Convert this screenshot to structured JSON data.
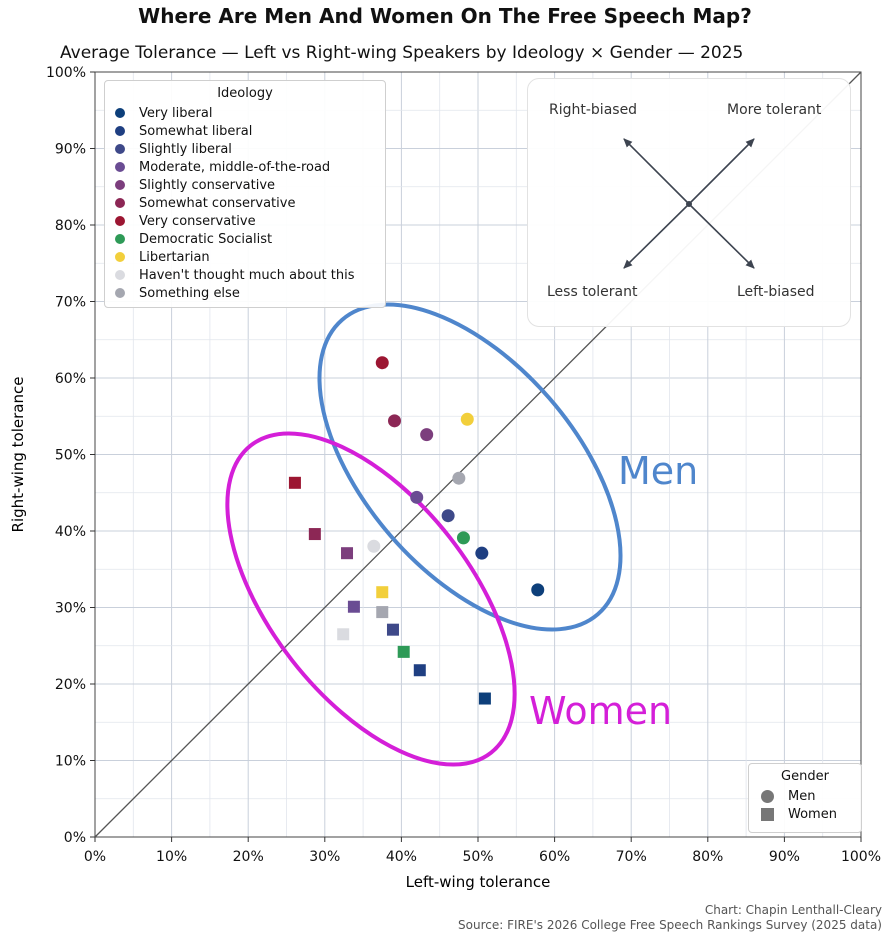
{
  "title": "Where Are Men And Women On The Free Speech Map?",
  "subtitle": "Average Tolerance — Left vs Right-wing Speakers by Ideology × Gender — 2025",
  "credit": {
    "line1": "Chart: Chapin Lenthall-Cleary",
    "line2": "Source: FIRE's 2026 College Free Speech Rankings Survey (2025 data)"
  },
  "chart_data": {
    "type": "scatter",
    "xlabel": "Left-wing tolerance",
    "ylabel": "Right-wing tolerance",
    "xlim": [
      0,
      100
    ],
    "ylim": [
      0,
      100
    ],
    "x_ticks": [
      "0%",
      "10%",
      "20%",
      "30%",
      "40%",
      "50%",
      "60%",
      "70%",
      "80%",
      "90%",
      "100%"
    ],
    "y_ticks": [
      "0%",
      "10%",
      "20%",
      "30%",
      "40%",
      "50%",
      "60%",
      "70%",
      "80%",
      "90%",
      "100%"
    ],
    "grid": true,
    "diagonal_line": true,
    "ideology_legend_title": "Ideology",
    "ideology_legend_placement": "top-left",
    "ideologies": [
      {
        "name": "Very liberal",
        "color": "#0d3f7a"
      },
      {
        "name": "Somewhat liberal",
        "color": "#1f3f82"
      },
      {
        "name": "Slightly liberal",
        "color": "#3e4989"
      },
      {
        "name": "Moderate, middle-of-the-road",
        "color": "#6a4c93"
      },
      {
        "name": "Slightly conservative",
        "color": "#7c3e7d"
      },
      {
        "name": "Somewhat conservative",
        "color": "#8c2755"
      },
      {
        "name": "Very conservative",
        "color": "#9c1632"
      },
      {
        "name": "Democratic Socialist",
        "color": "#2e9a57"
      },
      {
        "name": "Libertarian",
        "color": "#f2cf3b"
      },
      {
        "name": "Haven't thought much about this",
        "color": "#dadbe0"
      },
      {
        "name": "Something else",
        "color": "#a5a7b0"
      }
    ],
    "gender_legend_title": "Gender",
    "gender_legend_placement": "bottom-right",
    "genders": [
      {
        "name": "Men",
        "marker": "circle"
      },
      {
        "name": "Women",
        "marker": "square"
      }
    ],
    "series": [
      {
        "gender": "Men",
        "points": [
          {
            "ideology": "Very liberal",
            "x": 57.8,
            "y": 32.3
          },
          {
            "ideology": "Somewhat liberal",
            "x": 50.5,
            "y": 37.1
          },
          {
            "ideology": "Slightly liberal",
            "x": 46.1,
            "y": 42.0
          },
          {
            "ideology": "Moderate, middle-of-the-road",
            "x": 42.0,
            "y": 44.4
          },
          {
            "ideology": "Slightly conservative",
            "x": 43.3,
            "y": 52.6
          },
          {
            "ideology": "Somewhat conservative",
            "x": 39.1,
            "y": 54.4
          },
          {
            "ideology": "Very conservative",
            "x": 37.5,
            "y": 62.0
          },
          {
            "ideology": "Democratic Socialist",
            "x": 48.1,
            "y": 39.1
          },
          {
            "ideology": "Libertarian",
            "x": 48.6,
            "y": 54.6
          },
          {
            "ideology": "Haven't thought much about this",
            "x": 36.4,
            "y": 38.0
          },
          {
            "ideology": "Something else",
            "x": 47.5,
            "y": 46.9
          }
        ]
      },
      {
        "gender": "Women",
        "points": [
          {
            "ideology": "Very liberal",
            "x": 50.9,
            "y": 18.1
          },
          {
            "ideology": "Somewhat liberal",
            "x": 42.4,
            "y": 21.8
          },
          {
            "ideology": "Slightly liberal",
            "x": 38.9,
            "y": 27.1
          },
          {
            "ideology": "Moderate, middle-of-the-road",
            "x": 33.8,
            "y": 30.1
          },
          {
            "ideology": "Slightly conservative",
            "x": 32.9,
            "y": 37.1
          },
          {
            "ideology": "Somewhat conservative",
            "x": 28.7,
            "y": 39.6
          },
          {
            "ideology": "Very conservative",
            "x": 26.1,
            "y": 46.3
          },
          {
            "ideology": "Democratic Socialist",
            "x": 40.3,
            "y": 24.2
          },
          {
            "ideology": "Libertarian",
            "x": 37.5,
            "y": 32.0
          },
          {
            "ideology": "Haven't thought much about this",
            "x": 32.4,
            "y": 26.5
          },
          {
            "ideology": "Something else",
            "x": 37.5,
            "y": 29.4
          }
        ]
      }
    ],
    "annotations": [
      {
        "text": "Men",
        "color": "#4f86cc"
      },
      {
        "text": "Women",
        "color": "#d41fd8"
      }
    ],
    "direction_key": {
      "top_left": "Right-biased",
      "top_right": "More tolerant",
      "bottom_left": "Less tolerant",
      "bottom_right": "Left-biased"
    }
  }
}
